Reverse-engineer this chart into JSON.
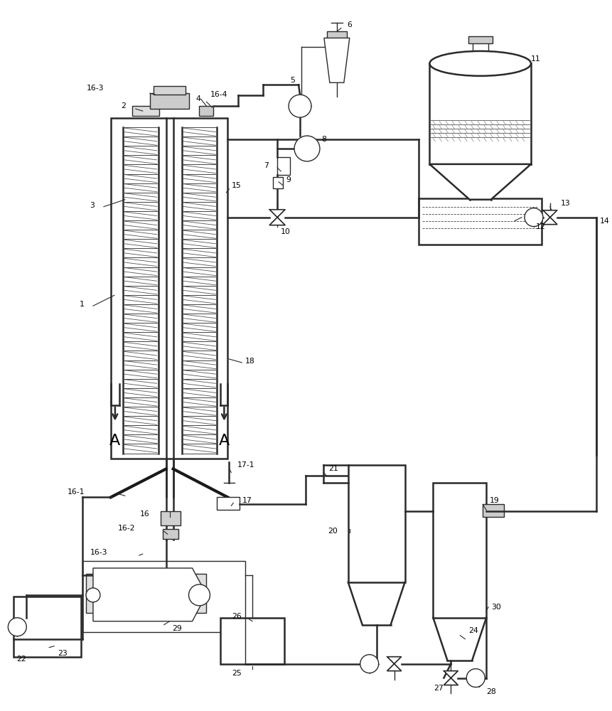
{
  "bg_color": "#ffffff",
  "line_color": "#2a2a2a",
  "lw": 1.0,
  "lw2": 1.8,
  "lw3": 3.0,
  "fig_width": 8.61,
  "fig_height": 10.0,
  "dpi": 100
}
